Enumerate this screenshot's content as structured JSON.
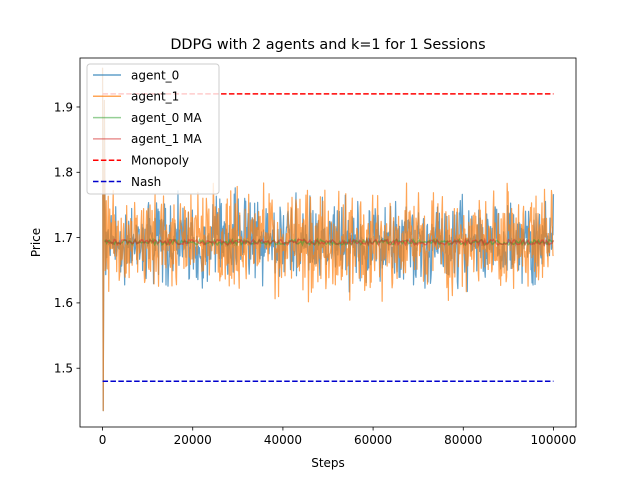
{
  "chart_data": {
    "type": "line",
    "title": "DDPG with 2 agents and k=1 for 1 Sessions",
    "xlabel": "Steps",
    "ylabel": "Price",
    "xlim": [
      -5000,
      105000
    ],
    "ylim": [
      1.41,
      1.975
    ],
    "xticks": [
      0,
      20000,
      40000,
      60000,
      80000,
      100000
    ],
    "xtick_labels": [
      "0",
      "20000",
      "40000",
      "60000",
      "80000",
      "100000"
    ],
    "yticks": [
      1.5,
      1.6,
      1.7,
      1.8,
      1.9
    ],
    "ytick_labels": [
      "1.5",
      "1.6",
      "1.7",
      "1.8",
      "1.9"
    ],
    "grid": false,
    "legend_position": "top-left",
    "series": [
      {
        "name": "agent_0",
        "kind": "noisy-line",
        "color": "#1f77b4",
        "alpha": 0.7,
        "x_range": [
          0,
          100000
        ],
        "center": 1.693,
        "band": [
          1.625,
          1.76
        ],
        "initial_values": [
          1.96,
          1.435
        ]
      },
      {
        "name": "agent_1",
        "kind": "noisy-line",
        "color": "#ff7f0e",
        "alpha": 0.7,
        "x_range": [
          0,
          100000
        ],
        "center": 1.693,
        "band": [
          1.61,
          1.775
        ],
        "initial_values": [
          1.96,
          1.435
        ]
      },
      {
        "name": "agent_0 MA",
        "kind": "moving-average",
        "color": "#2ca02c",
        "alpha": 0.5,
        "x_range": [
          0,
          100000
        ],
        "center": 1.693
      },
      {
        "name": "agent_1 MA",
        "kind": "moving-average",
        "color": "#d62728",
        "alpha": 0.5,
        "x_range": [
          0,
          100000
        ],
        "center": 1.693
      },
      {
        "name": "Monopoly",
        "kind": "dashed-line",
        "color": "#ff0000",
        "x": [
          0,
          100000
        ],
        "values": [
          1.92,
          1.92
        ]
      },
      {
        "name": "Nash",
        "kind": "dashed-line",
        "color": "#0000cd",
        "x": [
          0,
          100000
        ],
        "values": [
          1.48,
          1.48
        ]
      }
    ]
  }
}
